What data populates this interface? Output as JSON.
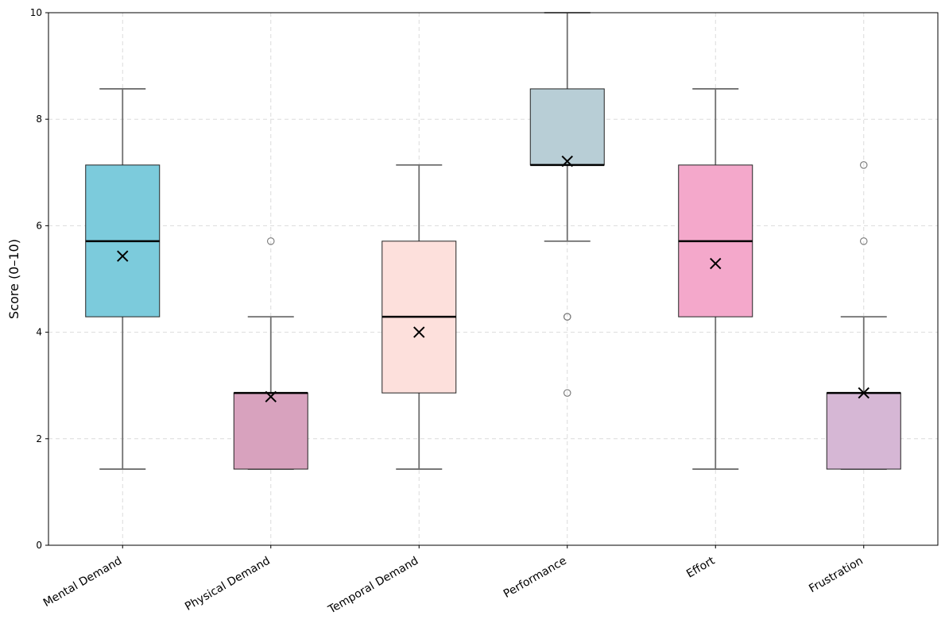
{
  "chart_data": {
    "type": "boxplot",
    "title": "",
    "xlabel": "",
    "ylabel": "Score (0–10)",
    "ylim": [
      0,
      10
    ],
    "yticks": [
      0,
      2,
      4,
      6,
      8,
      10
    ],
    "grid": true,
    "categories": [
      "Mental Demand",
      "Physical Demand",
      "Temporal Demand",
      "Performance",
      "Effort",
      "Frustration"
    ],
    "boxes": [
      {
        "name": "Mental Demand",
        "whisker_low": 1.43,
        "q1": 4.29,
        "median": 5.71,
        "q3": 7.14,
        "whisker_high": 8.57,
        "mean": 5.43,
        "outliers": [],
        "color": "#7ccbdc"
      },
      {
        "name": "Physical Demand",
        "whisker_low": 1.43,
        "q1": 1.43,
        "median": 2.86,
        "q3": 2.86,
        "whisker_high": 4.29,
        "mean": 2.79,
        "outliers": [
          5.71
        ],
        "color": "#d8a2be"
      },
      {
        "name": "Temporal Demand",
        "whisker_low": 1.43,
        "q1": 2.86,
        "median": 4.29,
        "q3": 5.71,
        "whisker_high": 7.14,
        "mean": 4.0,
        "outliers": [],
        "color": "#fde0dc"
      },
      {
        "name": "Performance",
        "whisker_low": 5.71,
        "q1": 7.14,
        "median": 7.14,
        "q3": 8.57,
        "whisker_high": 10.0,
        "mean": 7.21,
        "outliers": [
          4.29,
          4.29,
          2.86
        ],
        "color": "#b8ced6"
      },
      {
        "name": "Effort",
        "whisker_low": 1.43,
        "q1": 4.29,
        "median": 5.71,
        "q3": 7.14,
        "whisker_high": 8.57,
        "mean": 5.29,
        "outliers": [],
        "color": "#f4a8cb"
      },
      {
        "name": "Frustration",
        "whisker_low": 1.43,
        "q1": 1.43,
        "median": 2.86,
        "q3": 2.86,
        "whisker_high": 4.29,
        "mean": 2.86,
        "outliers": [
          7.14,
          5.71
        ],
        "color": "#d6b7d5"
      }
    ]
  }
}
